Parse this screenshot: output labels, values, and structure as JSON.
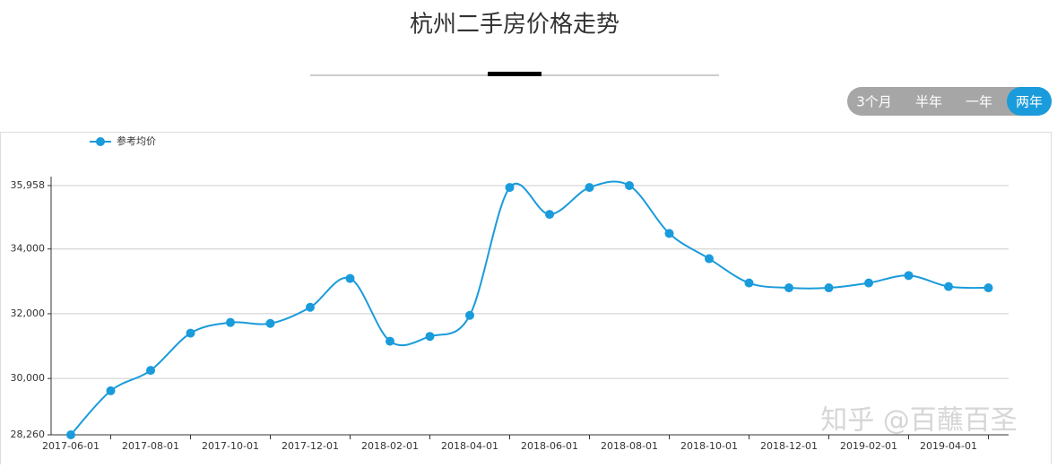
{
  "header": {
    "title": "杭州二手房价格走势"
  },
  "tabs": [
    "3个月",
    "半年",
    "一年",
    "两年"
  ],
  "active_tab": 3,
  "watermark": "知乎 @百蘸百圣",
  "chart_data": {
    "type": "line",
    "categories": [
      "2017-06-01",
      null,
      "2017-08-01",
      null,
      "2017-10-01",
      null,
      "2017-12-01",
      null,
      "2018-02-01",
      null,
      "2018-04-01",
      null,
      "2018-06-01",
      null,
      "2018-08-01",
      null,
      "2018-10-01",
      null,
      "2018-12-01",
      null,
      "2019-02-01",
      null,
      "2019-04-01",
      null
    ],
    "series": [
      {
        "name": "参考均价",
        "color": "#1a9bdb",
        "values": [
          28260,
          29620,
          30250,
          31400,
          31730,
          31700,
          32200,
          33090,
          31150,
          31300,
          31950,
          35900,
          35070,
          35900,
          35958,
          34480,
          33700,
          32950,
          32800,
          32800,
          32950,
          33180,
          32840,
          32800
        ]
      }
    ],
    "ylim": [
      28260,
      35958
    ],
    "yticks": [
      {
        "value": 28260,
        "label": "28,260"
      },
      {
        "value": 30000,
        "label": "30,000"
      },
      {
        "value": 32000,
        "label": "32,000"
      },
      {
        "value": 34000,
        "label": "34,000"
      },
      {
        "value": 35958,
        "label": "35,958"
      }
    ],
    "grid": true
  }
}
